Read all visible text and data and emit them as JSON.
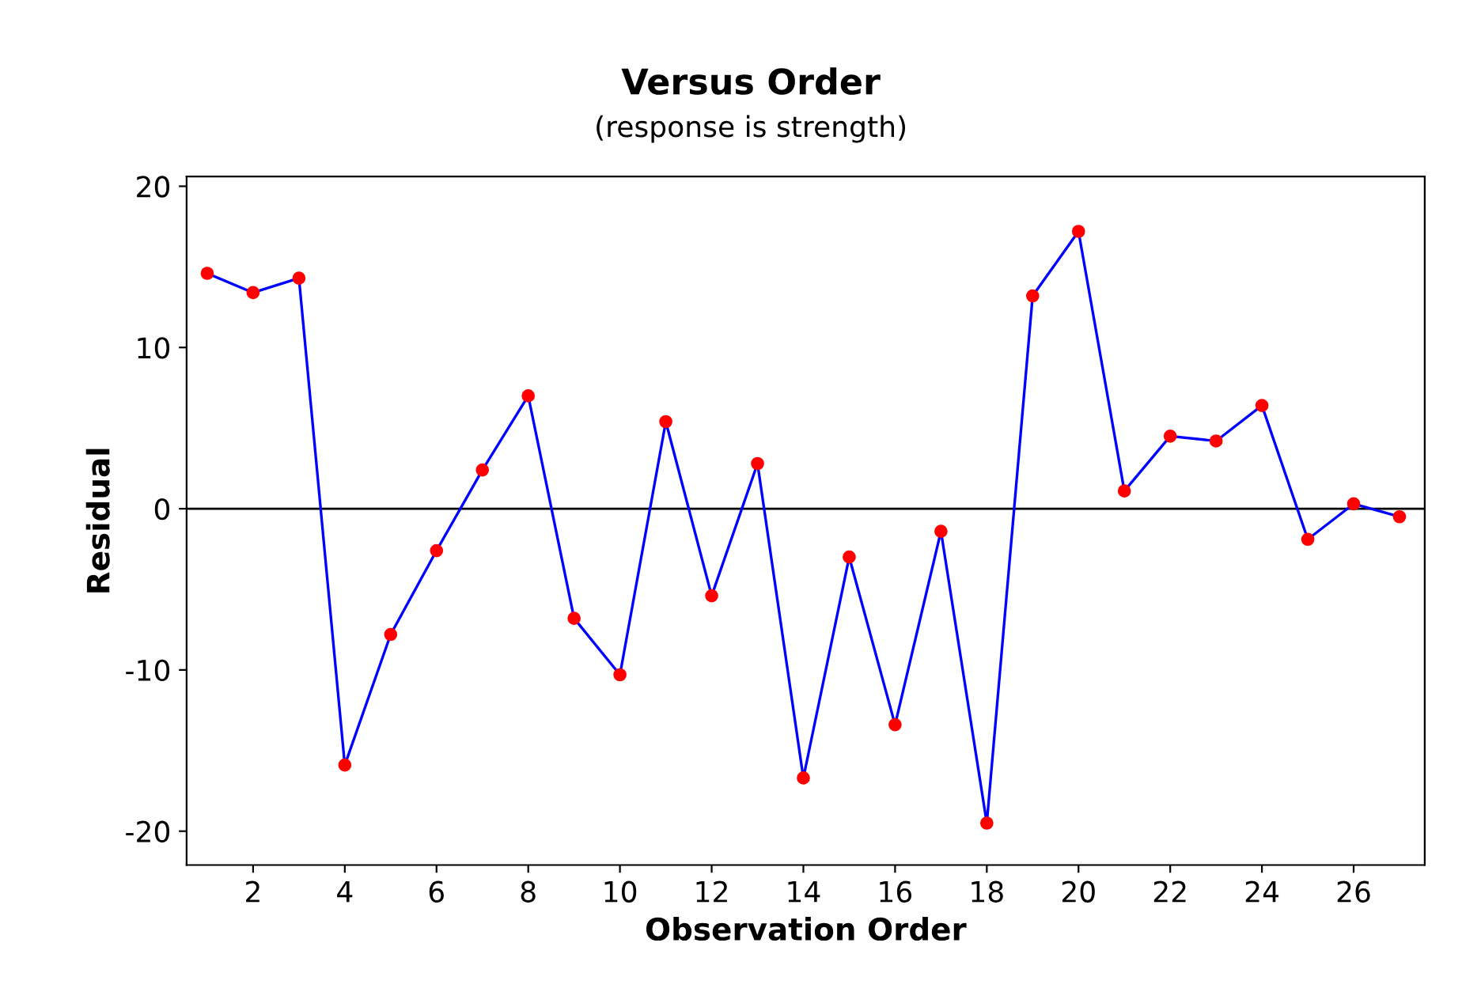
{
  "chart_data": {
    "type": "line",
    "title": "Versus Order",
    "subtitle": "(response is strength)",
    "xlabel": "Observation Order",
    "ylabel": "Residual",
    "x": [
      1,
      2,
      3,
      4,
      5,
      6,
      7,
      8,
      9,
      10,
      11,
      12,
      13,
      14,
      15,
      16,
      17,
      18,
      19,
      20,
      21,
      22,
      23,
      24,
      25,
      26,
      27
    ],
    "series": [
      {
        "color": "#0000ff",
        "colors": [
          "#ff0000",
          "#ff0000",
          "#ff0000",
          "#ff0000",
          "#ff0000",
          "#ff0000",
          "#ff0000",
          "#ff0000",
          "#ff0000",
          "#ff0000",
          "#ff0000",
          "#ff0000",
          "#ff0000",
          "#ff0000",
          "#ff0000",
          "#ff0000",
          "#ff0000",
          "#ff0000",
          "#ff0000",
          "#ff0000",
          "#ff0000",
          "#ff0000",
          "#ff0000",
          "#ff0000",
          "#ff0000",
          "#ff0000",
          "#ff0000"
        ],
        "values": [
          14.6,
          13.4,
          14.3,
          -15.9,
          -7.8,
          -2.6,
          2.4,
          7.0,
          -6.8,
          -10.3,
          5.4,
          -5.4,
          2.8,
          -16.7,
          -3.0,
          -13.4,
          -1.4,
          -19.5,
          13.2,
          17.2,
          1.1,
          4.5,
          4.2,
          6.4,
          -1.9,
          0.3,
          -0.5
        ]
      }
    ],
    "xlim": [
      0.55,
      27.55
    ],
    "xticks": [
      2,
      4,
      6,
      8,
      10,
      12,
      14,
      16,
      18,
      20,
      22,
      24,
      26
    ],
    "ylim": [
      -22.1,
      20.6
    ],
    "yticks": [
      -20,
      -10,
      0,
      10,
      20
    ],
    "ref_lines": [
      {
        "axis": "y",
        "value": 0,
        "color": "#000000"
      }
    ],
    "grid": false,
    "legend": false,
    "marker": "circle",
    "line_style": "solid"
  }
}
